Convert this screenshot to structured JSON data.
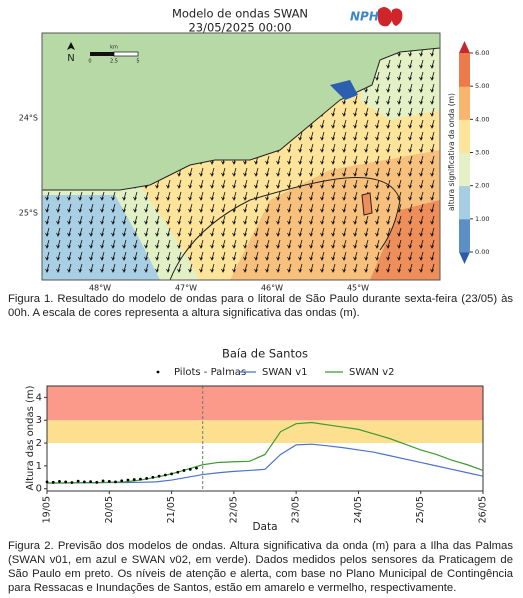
{
  "map": {
    "title": "Modelo de ondas SWAN",
    "subtitle": "23/05/2025 00:00",
    "logo": "NPH",
    "north": "N",
    "scale_unit": "km",
    "scale_labels": [
      "0",
      "2.5",
      "5"
    ],
    "xtick_labels": [
      "48°W",
      "47°W",
      "46°W",
      "45°W"
    ],
    "ytick_labels": [
      "24°S",
      "25°S"
    ],
    "colorbar": {
      "label": "altura significativa da onda (m)",
      "lim": [
        0,
        6
      ],
      "ticks": [
        {
          "value": 0,
          "label": "0.00"
        },
        {
          "value": 1,
          "label": "1.00"
        },
        {
          "value": 2,
          "label": "2.00"
        },
        {
          "value": 3,
          "label": "3.00"
        },
        {
          "value": 4,
          "label": "4.00"
        },
        {
          "value": 5,
          "label": "5.00"
        },
        {
          "value": 6,
          "label": "6.00"
        }
      ],
      "colors": [
        "#2f5aa6",
        "#5b8fc6",
        "#a5cde3",
        "#e4f1c6",
        "#fde49a",
        "#f9b56e",
        "#ec7a4a",
        "#c7272a"
      ]
    }
  },
  "figure1_caption": "Figura 1. Resultado do modelo de ondas para o litoral de São Paulo durante sexta-feira (23/05) às 00h. A escala de cores representa a altura significativa das ondas (m).",
  "chart_data": {
    "type": "line",
    "title": "Baía de Santos",
    "x_label": "Data",
    "y_label": "Altura das ondas (m)",
    "xlim": [
      0,
      7
    ],
    "xticks": [
      {
        "value": 0,
        "label": "19/05"
      },
      {
        "value": 1,
        "label": "20/05"
      },
      {
        "value": 2,
        "label": "21/05"
      },
      {
        "value": 3,
        "label": "22/05"
      },
      {
        "value": 4,
        "label": "23/05"
      },
      {
        "value": 5,
        "label": "24/05"
      },
      {
        "value": 6,
        "label": "25/05"
      },
      {
        "value": 7,
        "label": "26/05"
      }
    ],
    "ylim": [
      -0.1,
      4.5
    ],
    "yticks": [
      0,
      1,
      2,
      3,
      4
    ],
    "thresholds": [
      {
        "value": 2,
        "color": "#fde08f"
      },
      {
        "value": 3,
        "color": "#fb9a8a"
      }
    ],
    "marker_x": 2.5,
    "legend": "top",
    "series": [
      {
        "name": "Pilots - Palmas",
        "color": "#000000",
        "style": "dots",
        "x": [
          0,
          0.1,
          0.2,
          0.3,
          0.4,
          0.5,
          0.6,
          0.7,
          0.8,
          0.9,
          1.0,
          1.1,
          1.2,
          1.3,
          1.4,
          1.5,
          1.6,
          1.7,
          1.8,
          1.9,
          2.0,
          2.1,
          2.2,
          2.3,
          2.4
        ],
        "values": [
          0.3,
          0.28,
          0.32,
          0.3,
          0.27,
          0.33,
          0.3,
          0.31,
          0.28,
          0.34,
          0.32,
          0.3,
          0.35,
          0.38,
          0.4,
          0.42,
          0.45,
          0.5,
          0.55,
          0.6,
          0.65,
          0.72,
          0.8,
          0.85,
          0.9
        ]
      },
      {
        "name": "SWAN v1",
        "color": "#4c72c9",
        "style": "line",
        "x": [
          0,
          0.25,
          0.5,
          0.75,
          1,
          1.25,
          1.5,
          1.75,
          2,
          2.25,
          2.5,
          2.75,
          3,
          3.25,
          3.5,
          3.75,
          4,
          4.25,
          4.5,
          4.75,
          5,
          5.25,
          5.5,
          5.75,
          6,
          6.25,
          6.5,
          6.75,
          7
        ],
        "values": [
          0.25,
          0.25,
          0.26,
          0.26,
          0.27,
          0.27,
          0.28,
          0.3,
          0.38,
          0.5,
          0.62,
          0.7,
          0.76,
          0.8,
          0.85,
          1.5,
          1.92,
          1.95,
          1.88,
          1.8,
          1.7,
          1.6,
          1.45,
          1.3,
          1.15,
          1.0,
          0.85,
          0.7,
          0.55
        ]
      },
      {
        "name": "SWAN v2",
        "color": "#3f9a32",
        "style": "line",
        "x": [
          0,
          0.25,
          0.5,
          0.75,
          1,
          1.25,
          1.5,
          1.75,
          2,
          2.25,
          2.5,
          2.75,
          3,
          3.25,
          3.5,
          3.75,
          4,
          4.25,
          4.5,
          4.75,
          5,
          5.25,
          5.5,
          5.75,
          6,
          6.25,
          6.5,
          6.75,
          7
        ],
        "values": [
          0.25,
          0.25,
          0.26,
          0.27,
          0.28,
          0.3,
          0.38,
          0.5,
          0.65,
          0.85,
          1.05,
          1.15,
          1.18,
          1.2,
          1.5,
          2.5,
          2.85,
          2.9,
          2.8,
          2.7,
          2.6,
          2.4,
          2.2,
          1.95,
          1.7,
          1.5,
          1.25,
          1.05,
          0.8
        ]
      }
    ]
  },
  "figure2_caption": "Figura 2. Previsão dos modelos de ondas. Altura significativa da onda (m) para a Ilha das Palmas (SWAN v01, em azul e SWAN v02, em verde). Dados medidos pelos sensores da Praticagem de São Paulo em preto. Os níveis de atenção e alerta, com base no Plano Municipal de Contingência para Ressacas e Inundações de Santos, estão em amarelo e vermelho, respectivamente."
}
